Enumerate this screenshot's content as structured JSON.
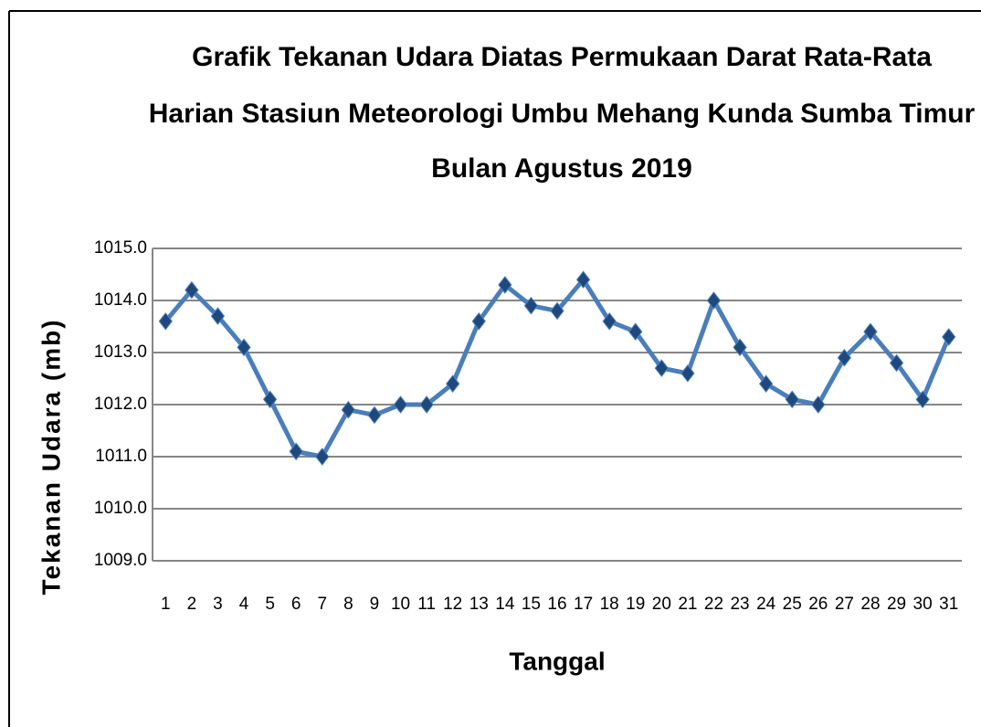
{
  "chart_data": {
    "type": "line",
    "title": [
      "Grafik  Tekanan Udara Diatas Permukaan  Darat  Rata-Rata",
      "Harian Stasiun Meteorologi Umbu Mehang Kunda Sumba Timur",
      "Bulan Agustus 2019"
    ],
    "x_label": "Tanggal",
    "y_label": "Tekanan Udara (mb)",
    "categories": [
      "1",
      "2",
      "3",
      "4",
      "5",
      "6",
      "7",
      "8",
      "9",
      "10",
      "11",
      "12",
      "13",
      "14",
      "15",
      "16",
      "17",
      "18",
      "19",
      "20",
      "21",
      "22",
      "23",
      "24",
      "25",
      "26",
      "27",
      "28",
      "29",
      "30",
      "31"
    ],
    "series": [
      {
        "name": "Tekanan Udara",
        "color": "#4a7ebb",
        "values": [
          1013.6,
          1014.2,
          1013.7,
          1013.1,
          1012.1,
          1011.1,
          1011.0,
          1011.9,
          1011.8,
          1012.0,
          1012.0,
          1012.4,
          1013.6,
          1014.3,
          1013.9,
          1013.8,
          1014.4,
          1013.6,
          1013.4,
          1012.7,
          1012.6,
          1014.0,
          1013.1,
          1012.4,
          1012.1,
          1012.0,
          1012.9,
          1013.4,
          1012.8,
          1012.1,
          1013.3
        ]
      }
    ],
    "marker_color": "#1f497d",
    "ylim": [
      1009,
      1015
    ],
    "yticks": [
      {
        "value": 1009,
        "label": "1009.0"
      },
      {
        "value": 1010,
        "label": "1010.0"
      },
      {
        "value": 1011,
        "label": "1011.0"
      },
      {
        "value": 1012,
        "label": "1012.0"
      },
      {
        "value": 1013,
        "label": "1013.0"
      },
      {
        "value": 1014,
        "label": "1014.0"
      },
      {
        "value": 1015,
        "label": "1015.0"
      }
    ],
    "grid": true
  }
}
